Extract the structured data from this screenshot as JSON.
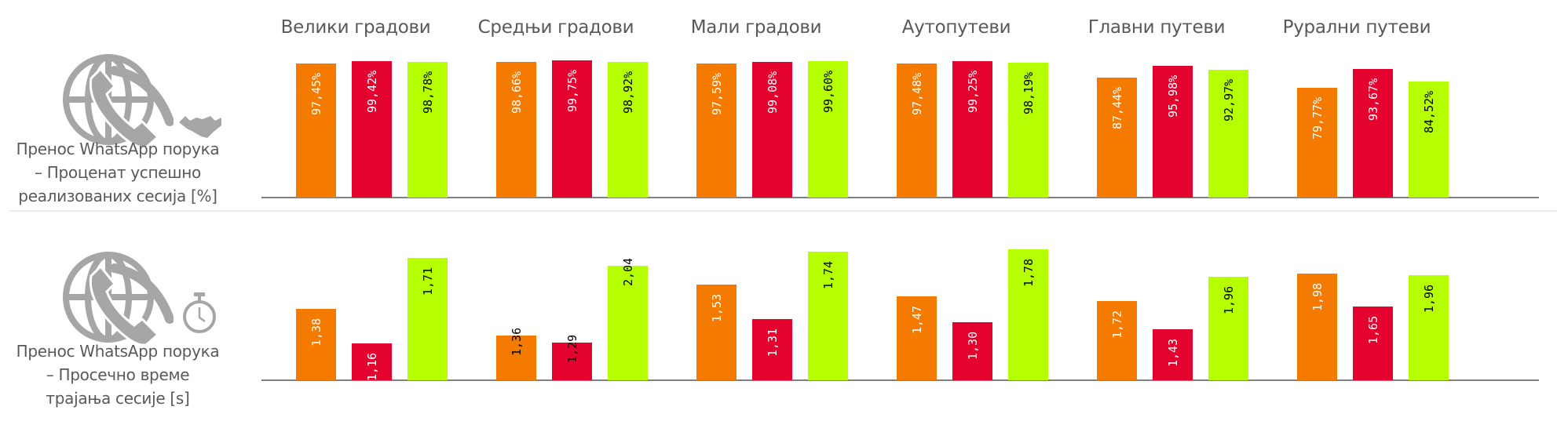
{
  "colors": {
    "operator_1": "#F47A00",
    "operator_2": "#E4032E",
    "operator_3": "#B5FF00",
    "text": "#595959",
    "icon": "#A6A6A6"
  },
  "rows": [
    {
      "label_lines": [
        "Пренос WhatsApp порука",
        "– Проценат успешно",
        "реализованих сесија [%]"
      ],
      "icons": [
        "globe-phone-icon",
        "handshake-icon"
      ]
    },
    {
      "label_lines": [
        "Пренос WhatsApp порука",
        "– Просечно време",
        "трајања сесије [s]"
      ],
      "icons": [
        "globe-phone-icon",
        "stopwatch-icon"
      ]
    }
  ],
  "chart_data": [
    {
      "type": "bar",
      "title": "Пренос WhatsApp порука – Проценат успешно реализованих сесија [%]",
      "categories": [
        "Велики градови",
        "Средњи градови",
        "Мали градови",
        "Аутопутеви",
        "Главни путеви",
        "Рурални путеви"
      ],
      "series": [
        {
          "values": [
            97.45,
            98.66,
            97.59,
            97.48,
            87.44,
            79.77
          ],
          "labels": [
            "97,45%",
            "98,66%",
            "97,59%",
            "97,48%",
            "87,44%",
            "79,77%"
          ],
          "color": "#F47A00"
        },
        {
          "values": [
            99.42,
            99.75,
            99.08,
            99.25,
            95.98,
            93.67
          ],
          "labels": [
            "99,42%",
            "99,75%",
            "99,08%",
            "99,25%",
            "95,98%",
            "93,67%"
          ],
          "color": "#E4032E"
        },
        {
          "values": [
            98.78,
            98.92,
            99.6,
            98.19,
            92.97,
            84.52
          ],
          "labels": [
            "98,78%",
            "98,92%",
            "99,60%",
            "98,19%",
            "92,97%",
            "84,52%"
          ],
          "color": "#B5FF00"
        }
      ],
      "ylim": [
        0,
        100
      ],
      "grid": false,
      "legend": "none"
    },
    {
      "type": "bar",
      "title": "Пренос WhatsApp порука – Просечно време трајања сесије [s]",
      "categories": [
        "Велики градови",
        "Средњи градови",
        "Мали градови",
        "Аутопутеви",
        "Главни путеви",
        "Рурални путеви"
      ],
      "series": [
        {
          "values": [
            1.38,
            1.36,
            1.53,
            1.47,
            1.72,
            1.98
          ],
          "labels": [
            "1,38",
            "1,36",
            "1,53",
            "1,47",
            "1,72",
            "1,98"
          ],
          "color": "#F47A00"
        },
        {
          "values": [
            1.16,
            1.29,
            1.31,
            1.3,
            1.43,
            1.65
          ],
          "labels": [
            "1,16",
            "1,29",
            "1,31",
            "1,30",
            "1,43",
            "1,65"
          ],
          "color": "#E4032E"
        },
        {
          "values": [
            1.71,
            2.04,
            1.74,
            1.78,
            1.96,
            1.96
          ],
          "labels": [
            "1,71",
            "2,04",
            "1,74",
            "1,78",
            "1,96",
            "1,96"
          ],
          "color": "#B5FF00"
        }
      ],
      "group_ylim": [
        [
          0.92,
          1.88
        ],
        [
          0.92,
          2.38
        ],
        [
          0.92,
          1.87
        ],
        [
          0.92,
          1.9
        ],
        [
          0.92,
          2.42
        ],
        [
          0.92,
          2.4
        ]
      ],
      "outside_labels_groups": [
        1
      ],
      "grid": false,
      "legend": "none"
    }
  ]
}
